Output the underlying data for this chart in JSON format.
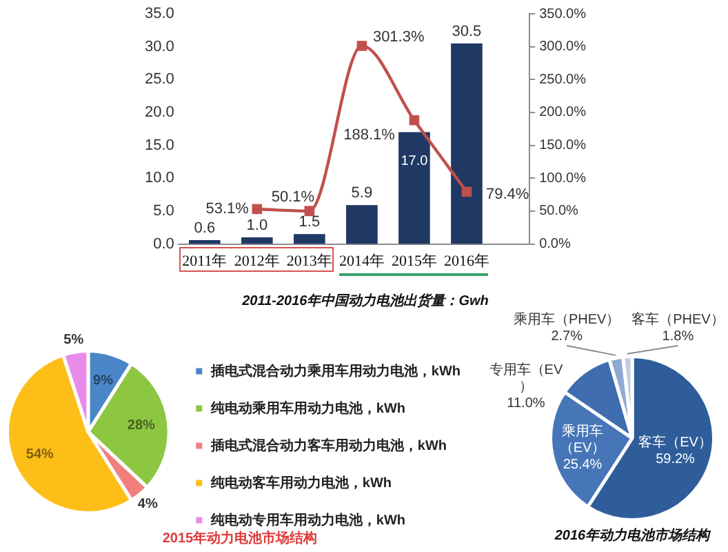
{
  "chart_data": [
    {
      "type": "bar",
      "title": "2011-2016年中国动力电池出货量：Gwh",
      "categories": [
        "2011年",
        "2012年",
        "2013年",
        "2014年",
        "2015年",
        "2016年"
      ],
      "series": [
        {
          "type": "bar",
          "color": "#1f3864",
          "values": [
            0.6,
            1.0,
            1.5,
            5.9,
            17.0,
            30.5
          ],
          "value_labels": [
            "0.6",
            "1.0",
            "1.5",
            "5.9",
            "17.0",
            "30.5"
          ]
        },
        {
          "type": "line",
          "axis": "y2",
          "color": "#c0504d",
          "values": [
            null,
            53.1,
            50.1,
            301.3,
            188.1,
            79.4
          ],
          "value_labels": [
            null,
            "53.1%",
            "50.1%",
            "301.3%",
            "188.1%",
            "79.4%"
          ]
        }
      ],
      "ylim": [
        0,
        35
      ],
      "yticks": [
        {
          "value": 0,
          "label": "0.0"
        },
        {
          "value": 5,
          "label": "5.0"
        },
        {
          "value": 10,
          "label": "10.0"
        },
        {
          "value": 15,
          "label": "15.0"
        },
        {
          "value": 20,
          "label": "20.0"
        },
        {
          "value": 25,
          "label": "25.0"
        },
        {
          "value": 30,
          "label": "30.0"
        },
        {
          "value": 35,
          "label": "35.0"
        }
      ],
      "y2lim": [
        0,
        350
      ],
      "y2ticks": [
        {
          "value": 0,
          "label": "0.0%"
        },
        {
          "value": 50,
          "label": "50.0%"
        },
        {
          "value": 100,
          "label": "100.0%"
        },
        {
          "value": 150,
          "label": "150.0%"
        },
        {
          "value": 200,
          "label": "200.0%"
        },
        {
          "value": 250,
          "label": "250.0%"
        },
        {
          "value": 300,
          "label": "300.0%"
        },
        {
          "value": 350,
          "label": "350.0%"
        }
      ],
      "marker": "square",
      "legend": false
    },
    {
      "type": "pie",
      "title": "2015年动力电池市场结构",
      "categories": [
        "插电式混合动力乘用车用动力电池，kWh",
        "纯电动乘用车用动力电池，kWh",
        "插电式混合动力客车用动力电池，kWh",
        "纯电动客车用动力电池，kWh",
        "纯电动专用车用动力电池，kWh"
      ],
      "values": [
        9,
        28,
        4,
        54,
        5
      ],
      "colors": [
        "#4a86c8",
        "#8dc641",
        "#f37e7e",
        "#fdbe18",
        "#e98ce9"
      ],
      "value_labels": [
        "9%",
        "28%",
        "4%",
        "54%",
        "5%"
      ],
      "legend": "right"
    },
    {
      "type": "pie",
      "title": "2016年动力电池市场结构",
      "categories": [
        "客车（EV）",
        "乘用车（EV）",
        "专用车（EV）",
        "乘用车（PHEV）",
        "客车（PHEV）"
      ],
      "values": [
        59.2,
        25.4,
        11.0,
        2.7,
        1.8
      ],
      "colors": [
        "#2e5d9a",
        "#4676b8",
        "#3f6db0",
        "#8fa9d4",
        "#c0cde4"
      ],
      "value_labels": [
        "59.2%",
        "25.4%",
        "11.0%",
        "2.7%",
        "1.8%"
      ],
      "legend": false
    }
  ]
}
